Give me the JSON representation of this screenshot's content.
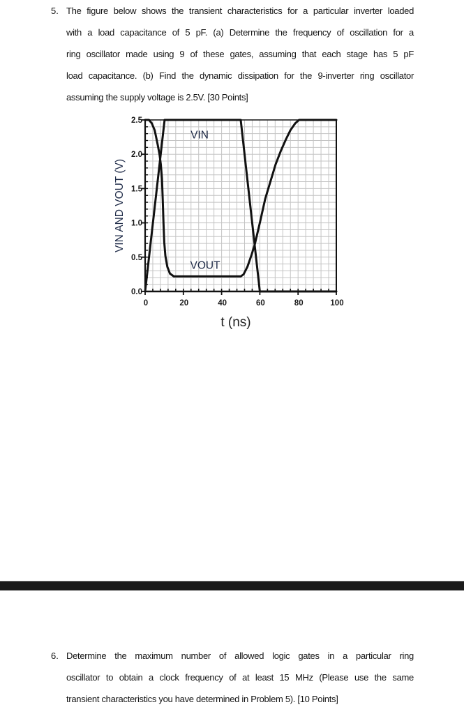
{
  "questions": [
    {
      "number": "5.",
      "lines": [
        "The figure below shows the transient characteristics for a particular inverter loaded",
        "with a load capacitance of 5 pF. (a) Determine the frequency of oscillation for a",
        "ring oscillator made using 9 of these gates, assuming that each stage has 5 pF",
        "load capacitance. (b) Find the dynamic dissipation for the 9-inverter ring oscillator",
        "assuming the supply voltage is 2.5V. [30 Points]"
      ]
    },
    {
      "number": "6.",
      "lines": [
        "Determine the maximum number of allowed logic gates in a particular ring",
        "oscillator to obtain a clock frequency of at least 15 MHz (Please use the same",
        "transient characteristics you have determined in Problem 5). [10 Points]"
      ]
    }
  ],
  "divider": {
    "color": "#1b1b1b"
  },
  "chart_data": {
    "type": "line",
    "title": "",
    "xlabel": "t (ns)",
    "ylabel": "VIN AND VOUT (V)",
    "xlim": [
      0,
      100
    ],
    "ylim": [
      0,
      2.5
    ],
    "xticks": [
      0,
      20,
      40,
      60,
      80,
      100
    ],
    "xtick_labels": [
      "0",
      "20",
      "40",
      "60",
      "80",
      "100"
    ],
    "yticks": [
      0,
      0.5,
      1.0,
      1.5,
      2.0,
      2.5
    ],
    "ytick_labels": [
      "0.0",
      "0.5",
      "1.0",
      "1.5",
      "2.0",
      "2.5"
    ],
    "grid": true,
    "grid_x_step": 4,
    "grid_y_step": 0.1,
    "legend": "none (curves labeled inline)",
    "series": [
      {
        "name": "VIN",
        "x": [
          0,
          10.2,
          50,
          60,
          100
        ],
        "y": [
          0,
          2.5,
          2.5,
          0,
          0
        ]
      },
      {
        "name": "VOUT",
        "x": [
          0,
          2,
          3.5,
          5,
          6.5,
          7.5,
          8.2,
          8.8,
          9.2,
          9.6,
          10,
          10.6,
          11.6,
          13,
          15,
          50,
          51.5,
          53.5,
          55.5,
          57.3,
          60,
          62.8,
          65.5,
          68.2,
          71,
          73.7,
          76,
          78.5,
          80.5,
          100
        ],
        "y": [
          2.5,
          2.5,
          2.45,
          2.35,
          2.15,
          2.0,
          1.85,
          1.65,
          1.35,
          1.0,
          0.72,
          0.52,
          0.36,
          0.26,
          0.22,
          0.22,
          0.25,
          0.36,
          0.52,
          0.68,
          1.0,
          1.35,
          1.6,
          1.85,
          2.05,
          2.22,
          2.35,
          2.45,
          2.5,
          2.5
        ]
      }
    ],
    "annotations": [
      {
        "text": "VIN",
        "x": 28.5,
        "y": 2.27
      },
      {
        "text": "VOUT",
        "x": 31.4,
        "y": 0.37
      }
    ]
  }
}
